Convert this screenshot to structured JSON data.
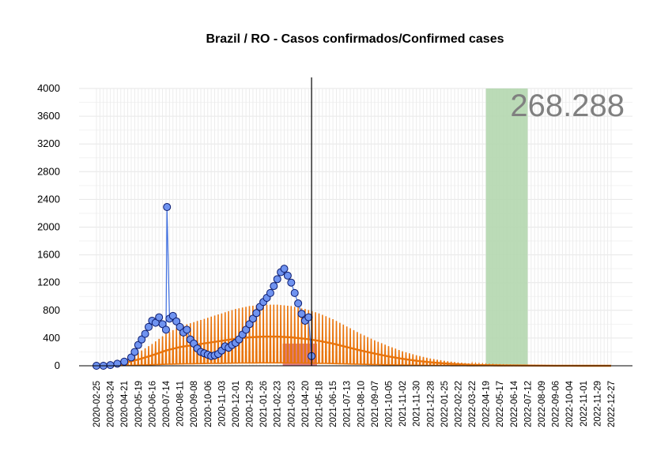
{
  "chart_data": {
    "type": "line",
    "title": "Brazil / RO - Casos confirmados/Confirmed cases",
    "total_label": "268.288",
    "xlabel": "",
    "ylabel": "",
    "ylim": [
      0,
      4000
    ],
    "yticks": [
      0,
      400,
      800,
      1200,
      1600,
      2000,
      2400,
      2800,
      3200,
      3600,
      4000
    ],
    "xlim": [
      "2020-02-25",
      "2022-12-27"
    ],
    "xticks": [
      "2020-02-25",
      "2020-03-24",
      "2020-04-21",
      "2020-05-19",
      "2020-06-16",
      "2020-07-14",
      "2020-08-11",
      "2020-09-08",
      "2020-10-06",
      "2020-11-03",
      "2020-12-01",
      "2020-12-29",
      "2021-01-26",
      "2021-02-23",
      "2021-03-23",
      "2021-04-20",
      "2021-05-18",
      "2021-06-15",
      "2021-07-13",
      "2021-08-10",
      "2021-09-07",
      "2021-10-05",
      "2021-11-02",
      "2021-11-30",
      "2021-12-28",
      "2022-01-25",
      "2022-02-22",
      "2022-03-22",
      "2022-04-19",
      "2022-05-17",
      "2022-06-14",
      "2022-07-12",
      "2022-08-09",
      "2022-09-06",
      "2022-10-04",
      "2022-11-01",
      "2022-11-29",
      "2022-12-27"
    ],
    "current_date": "2021-05-03",
    "grid": true,
    "legend": "none",
    "observed": {
      "name": "",
      "color": "#6f93f0",
      "edge_color": "#0a1a6e",
      "points": [
        [
          "2020-02-25",
          0
        ],
        [
          "2020-03-10",
          0
        ],
        [
          "2020-03-24",
          10
        ],
        [
          "2020-04-07",
          30
        ],
        [
          "2020-04-21",
          60
        ],
        [
          "2020-05-05",
          120
        ],
        [
          "2020-05-12",
          200
        ],
        [
          "2020-05-19",
          300
        ],
        [
          "2020-05-26",
          380
        ],
        [
          "2020-06-02",
          460
        ],
        [
          "2020-06-09",
          560
        ],
        [
          "2020-06-16",
          650
        ],
        [
          "2020-06-23",
          620
        ],
        [
          "2020-06-30",
          700
        ],
        [
          "2020-07-07",
          600
        ],
        [
          "2020-07-14",
          520
        ],
        [
          "2020-07-16",
          2290
        ],
        [
          "2020-07-21",
          680
        ],
        [
          "2020-07-28",
          720
        ],
        [
          "2020-08-04",
          640
        ],
        [
          "2020-08-11",
          560
        ],
        [
          "2020-08-18",
          480
        ],
        [
          "2020-08-25",
          520
        ],
        [
          "2020-09-01",
          380
        ],
        [
          "2020-09-08",
          320
        ],
        [
          "2020-09-15",
          250
        ],
        [
          "2020-09-22",
          200
        ],
        [
          "2020-09-29",
          180
        ],
        [
          "2020-10-06",
          160
        ],
        [
          "2020-10-13",
          140
        ],
        [
          "2020-10-20",
          150
        ],
        [
          "2020-10-27",
          170
        ],
        [
          "2020-11-03",
          220
        ],
        [
          "2020-11-10",
          280
        ],
        [
          "2020-11-17",
          260
        ],
        [
          "2020-11-24",
          300
        ],
        [
          "2020-12-01",
          330
        ],
        [
          "2020-12-08",
          380
        ],
        [
          "2020-12-15",
          450
        ],
        [
          "2020-12-22",
          520
        ],
        [
          "2020-12-29",
          600
        ],
        [
          "2021-01-05",
          680
        ],
        [
          "2021-01-12",
          760
        ],
        [
          "2021-01-19",
          850
        ],
        [
          "2021-01-26",
          920
        ],
        [
          "2021-02-02",
          980
        ],
        [
          "2021-02-09",
          1050
        ],
        [
          "2021-02-16",
          1150
        ],
        [
          "2021-02-23",
          1250
        ],
        [
          "2021-03-02",
          1350
        ],
        [
          "2021-03-09",
          1400
        ],
        [
          "2021-03-16",
          1300
        ],
        [
          "2021-03-23",
          1200
        ],
        [
          "2021-03-30",
          1050
        ],
        [
          "2021-04-06",
          900
        ],
        [
          "2021-04-13",
          750
        ],
        [
          "2021-04-20",
          650
        ],
        [
          "2021-04-27",
          700
        ],
        [
          "2021-05-03",
          140
        ]
      ]
    },
    "projection": {
      "name": "",
      "color": "#e8740c",
      "points": [
        [
          "2020-02-25",
          0
        ],
        [
          "2020-03-24",
          10
        ],
        [
          "2020-04-21",
          40
        ],
        [
          "2020-05-19",
          90
        ],
        [
          "2020-06-16",
          150
        ],
        [
          "2020-07-14",
          220
        ],
        [
          "2020-08-11",
          270
        ],
        [
          "2020-09-08",
          300
        ],
        [
          "2020-10-06",
          330
        ],
        [
          "2020-11-03",
          360
        ],
        [
          "2020-12-01",
          390
        ],
        [
          "2020-12-29",
          410
        ],
        [
          "2021-01-26",
          420
        ],
        [
          "2021-02-23",
          420
        ],
        [
          "2021-03-23",
          410
        ],
        [
          "2021-04-20",
          390
        ],
        [
          "2021-05-18",
          360
        ],
        [
          "2021-06-15",
          320
        ],
        [
          "2021-07-13",
          270
        ],
        [
          "2021-08-10",
          220
        ],
        [
          "2021-09-07",
          175
        ],
        [
          "2021-10-05",
          135
        ],
        [
          "2021-11-02",
          100
        ],
        [
          "2021-11-30",
          72
        ],
        [
          "2021-12-28",
          50
        ],
        [
          "2022-01-25",
          34
        ],
        [
          "2022-02-22",
          22
        ],
        [
          "2022-03-22",
          14
        ],
        [
          "2022-04-19",
          9
        ],
        [
          "2022-05-17",
          6
        ],
        [
          "2022-06-14",
          4
        ],
        [
          "2022-07-12",
          3
        ],
        [
          "2022-08-09",
          2
        ],
        [
          "2022-09-06",
          1
        ],
        [
          "2022-10-04",
          1
        ],
        [
          "2022-11-01",
          0
        ],
        [
          "2022-11-29",
          0
        ],
        [
          "2022-12-27",
          0
        ]
      ]
    },
    "bands": [
      {
        "name": "",
        "color": "#b4d7af",
        "x0": "2022-04-19",
        "x1": "2022-07-12",
        "y0": 0,
        "y1": 4000
      },
      {
        "name": "",
        "color": "#d9707a",
        "x0": "2021-03-06",
        "x1": "2021-05-14",
        "y0": 0,
        "y1": 320
      }
    ],
    "hlines": [
      0
    ]
  }
}
